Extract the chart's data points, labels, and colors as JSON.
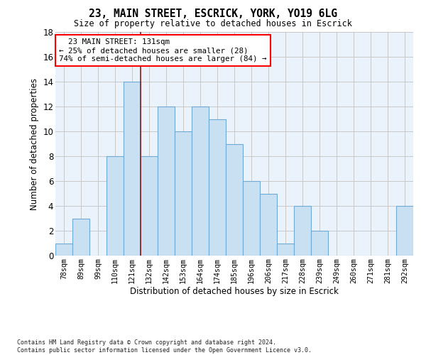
{
  "title1": "23, MAIN STREET, ESCRICK, YORK, YO19 6LG",
  "title2": "Size of property relative to detached houses in Escrick",
  "xlabel": "Distribution of detached houses by size in Escrick",
  "ylabel": "Number of detached properties",
  "footnote": "Contains HM Land Registry data © Crown copyright and database right 2024.\nContains public sector information licensed under the Open Government Licence v3.0.",
  "categories": [
    "78sqm",
    "89sqm",
    "99sqm",
    "110sqm",
    "121sqm",
    "132sqm",
    "142sqm",
    "153sqm",
    "164sqm",
    "174sqm",
    "185sqm",
    "196sqm",
    "206sqm",
    "217sqm",
    "228sqm",
    "239sqm",
    "249sqm",
    "260sqm",
    "271sqm",
    "281sqm",
    "292sqm"
  ],
  "values": [
    1,
    3,
    0,
    8,
    14,
    8,
    12,
    10,
    12,
    11,
    9,
    6,
    5,
    1,
    4,
    2,
    0,
    0,
    0,
    0,
    4
  ],
  "bar_color": "#c9dff2",
  "bar_edge_color": "#6faad4",
  "annotation_box_text": "  23 MAIN STREET: 131sqm\n← 25% of detached houses are smaller (28)\n74% of semi-detached houses are larger (84) →",
  "annotation_box_color": "white",
  "annotation_box_edge_color": "red",
  "vline_x_index": 4.5,
  "vline_color": "#8b1a1a",
  "ylim": [
    0,
    18
  ],
  "yticks": [
    0,
    2,
    4,
    6,
    8,
    10,
    12,
    14,
    16,
    18
  ],
  "grid_color": "#c8c8c8",
  "background_color": "white",
  "bar_width": 1.0
}
